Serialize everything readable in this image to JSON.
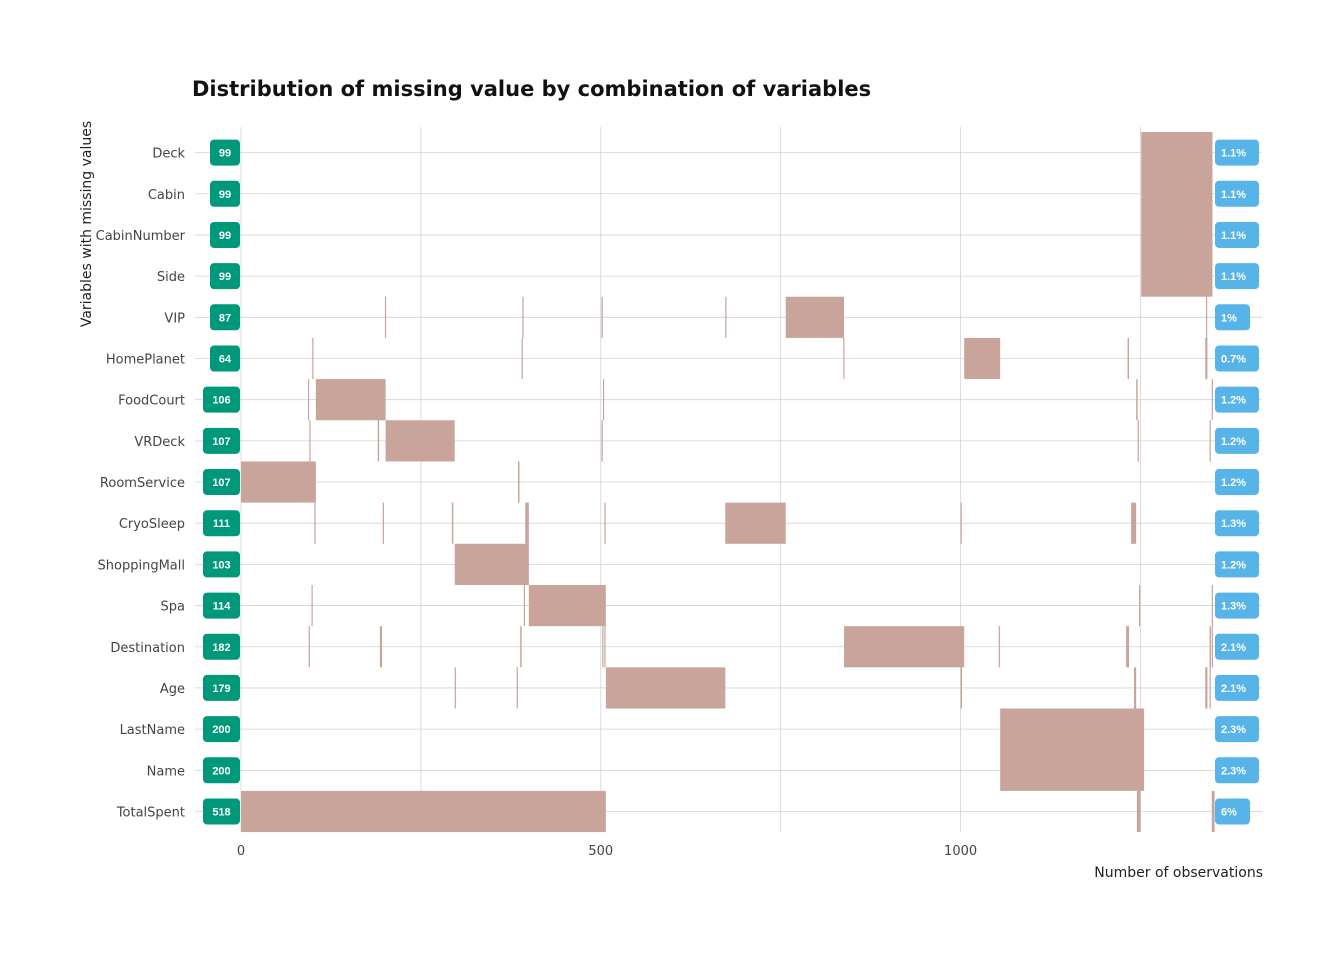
{
  "chart_data": {
    "type": "bar",
    "title": "Distribution of missing value by combination of variables",
    "xlabel": "Number of observations",
    "ylabel": "Variables with missing values",
    "xlim": [
      0,
      1420
    ],
    "x_ticks": [
      0,
      500,
      1000
    ],
    "x_minor_ticks": [
      250,
      750,
      1250
    ],
    "grid": true,
    "variables": [
      {
        "name": "Deck",
        "count": "99",
        "percent": "1.1%"
      },
      {
        "name": "Cabin",
        "count": "99",
        "percent": "1.1%"
      },
      {
        "name": "CabinNumber",
        "count": "99",
        "percent": "1.1%"
      },
      {
        "name": "Side",
        "count": "99",
        "percent": "1.1%"
      },
      {
        "name": "VIP",
        "count": "87",
        "percent": "1%"
      },
      {
        "name": "HomePlanet",
        "count": "64",
        "percent": "0.7%"
      },
      {
        "name": "FoodCourt",
        "count": "106",
        "percent": "1.2%"
      },
      {
        "name": "VRDeck",
        "count": "107",
        "percent": "1.2%"
      },
      {
        "name": "RoomService",
        "count": "107",
        "percent": "1.2%"
      },
      {
        "name": "CryoSleep",
        "count": "111",
        "percent": "1.3%"
      },
      {
        "name": "ShoppingMall",
        "count": "103",
        "percent": "1.2%"
      },
      {
        "name": "Spa",
        "count": "114",
        "percent": "1.3%"
      },
      {
        "name": "Destination",
        "count": "182",
        "percent": "2.1%"
      },
      {
        "name": "Age",
        "count": "179",
        "percent": "2.1%"
      },
      {
        "name": "LastName",
        "count": "200",
        "percent": "2.3%"
      },
      {
        "name": "Name",
        "count": "200",
        "percent": "2.3%"
      },
      {
        "name": "TotalSpent",
        "count": "518",
        "percent": "6%"
      }
    ],
    "segments": [
      {
        "start": 1251,
        "end": 1350,
        "rows": [
          "Deck",
          "Cabin",
          "CabinNumber",
          "Side"
        ]
      },
      {
        "start": 757,
        "end": 838,
        "rows": [
          "VIP"
        ]
      },
      {
        "start": 1005,
        "end": 1055,
        "rows": [
          "HomePlanet"
        ]
      },
      {
        "start": 104,
        "end": 201,
        "rows": [
          "FoodCourt"
        ]
      },
      {
        "start": 201,
        "end": 297,
        "rows": [
          "VRDeck"
        ]
      },
      {
        "start": 0,
        "end": 104,
        "rows": [
          "RoomService"
        ]
      },
      {
        "start": 673,
        "end": 757,
        "rows": [
          "CryoSleep"
        ]
      },
      {
        "start": 297,
        "end": 400,
        "rows": [
          "ShoppingMall"
        ]
      },
      {
        "start": 400,
        "end": 507,
        "rows": [
          "Spa"
        ]
      },
      {
        "start": 838,
        "end": 1005,
        "rows": [
          "Destination"
        ]
      },
      {
        "start": 507,
        "end": 673,
        "rows": [
          "Age"
        ]
      },
      {
        "start": 1055,
        "end": 1255,
        "rows": [
          "LastName",
          "Name"
        ]
      },
      {
        "start": 0,
        "end": 507,
        "rows": [
          "TotalSpent"
        ]
      },
      {
        "start": 1245,
        "end": 1250,
        "rows": [
          "TotalSpent"
        ]
      },
      {
        "start": 1349,
        "end": 1353,
        "rows": [
          "TotalSpent"
        ]
      },
      {
        "start": 200,
        "end": 201,
        "rows": [
          "VIP"
        ]
      },
      {
        "start": 391,
        "end": 392,
        "rows": [
          "VIP"
        ]
      },
      {
        "start": 501,
        "end": 502,
        "rows": [
          "VIP"
        ]
      },
      {
        "start": 673,
        "end": 674,
        "rows": [
          "VIP"
        ]
      },
      {
        "start": 1341,
        "end": 1342,
        "rows": [
          "VIP"
        ]
      },
      {
        "start": 99,
        "end": 100,
        "rows": [
          "HomePlanet"
        ]
      },
      {
        "start": 390,
        "end": 391,
        "rows": [
          "HomePlanet"
        ]
      },
      {
        "start": 837,
        "end": 838,
        "rows": [
          "HomePlanet"
        ]
      },
      {
        "start": 1232,
        "end": 1234,
        "rows": [
          "HomePlanet"
        ]
      },
      {
        "start": 1340,
        "end": 1343,
        "rows": [
          "HomePlanet"
        ]
      },
      {
        "start": 93,
        "end": 94,
        "rows": [
          "FoodCourt"
        ]
      },
      {
        "start": 503,
        "end": 504,
        "rows": [
          "FoodCourt"
        ]
      },
      {
        "start": 1244,
        "end": 1246,
        "rows": [
          "FoodCourt"
        ]
      },
      {
        "start": 1349,
        "end": 1350,
        "rows": [
          "FoodCourt"
        ]
      },
      {
        "start": 95,
        "end": 96,
        "rows": [
          "VRDeck"
        ]
      },
      {
        "start": 190,
        "end": 192,
        "rows": [
          "VRDeck"
        ]
      },
      {
        "start": 501,
        "end": 502,
        "rows": [
          "VRDeck"
        ]
      },
      {
        "start": 1246,
        "end": 1247,
        "rows": [
          "VRDeck"
        ]
      },
      {
        "start": 1346,
        "end": 1347,
        "rows": [
          "VRDeck"
        ]
      },
      {
        "start": 385,
        "end": 387,
        "rows": [
          "RoomService"
        ]
      },
      {
        "start": 102,
        "end": 103,
        "rows": [
          "CryoSleep"
        ]
      },
      {
        "start": 197,
        "end": 198,
        "rows": [
          "CryoSleep"
        ]
      },
      {
        "start": 293,
        "end": 295,
        "rows": [
          "CryoSleep"
        ]
      },
      {
        "start": 395,
        "end": 400,
        "rows": [
          "CryoSleep"
        ]
      },
      {
        "start": 505,
        "end": 506,
        "rows": [
          "CryoSleep"
        ]
      },
      {
        "start": 1000,
        "end": 1001,
        "rows": [
          "CryoSleep"
        ]
      },
      {
        "start": 1237,
        "end": 1244,
        "rows": [
          "CryoSleep"
        ]
      },
      {
        "start": 98,
        "end": 99,
        "rows": [
          "Spa"
        ]
      },
      {
        "start": 393,
        "end": 394,
        "rows": [
          "Spa"
        ]
      },
      {
        "start": 1248,
        "end": 1249,
        "rows": [
          "Spa"
        ]
      },
      {
        "start": 1349,
        "end": 1350,
        "rows": [
          "Spa"
        ]
      },
      {
        "start": 94,
        "end": 95,
        "rows": [
          "Destination"
        ]
      },
      {
        "start": 193,
        "end": 196,
        "rows": [
          "Destination"
        ]
      },
      {
        "start": 388,
        "end": 390,
        "rows": [
          "Destination"
        ]
      },
      {
        "start": 502,
        "end": 503,
        "rows": [
          "Destination"
        ]
      },
      {
        "start": 505,
        "end": 506,
        "rows": [
          "Destination"
        ]
      },
      {
        "start": 1053,
        "end": 1054,
        "rows": [
          "Destination"
        ]
      },
      {
        "start": 1230,
        "end": 1234,
        "rows": [
          "Destination"
        ]
      },
      {
        "start": 1346,
        "end": 1348,
        "rows": [
          "Destination"
        ]
      },
      {
        "start": 1349,
        "end": 1350,
        "rows": [
          "Destination"
        ]
      },
      {
        "start": 297,
        "end": 298,
        "rows": [
          "Age"
        ]
      },
      {
        "start": 383,
        "end": 384,
        "rows": [
          "Age"
        ]
      },
      {
        "start": 1000,
        "end": 1002,
        "rows": [
          "Age"
        ]
      },
      {
        "start": 1241,
        "end": 1244,
        "rows": [
          "Age"
        ]
      },
      {
        "start": 1340,
        "end": 1343,
        "rows": [
          "Age"
        ]
      },
      {
        "start": 1346,
        "end": 1347,
        "rows": [
          "Age"
        ]
      }
    ],
    "colors": {
      "bar": "#c8a49a",
      "count_badge": "#00987a",
      "percent_badge": "#56b4e9",
      "grid": "#d3d3d3"
    }
  }
}
